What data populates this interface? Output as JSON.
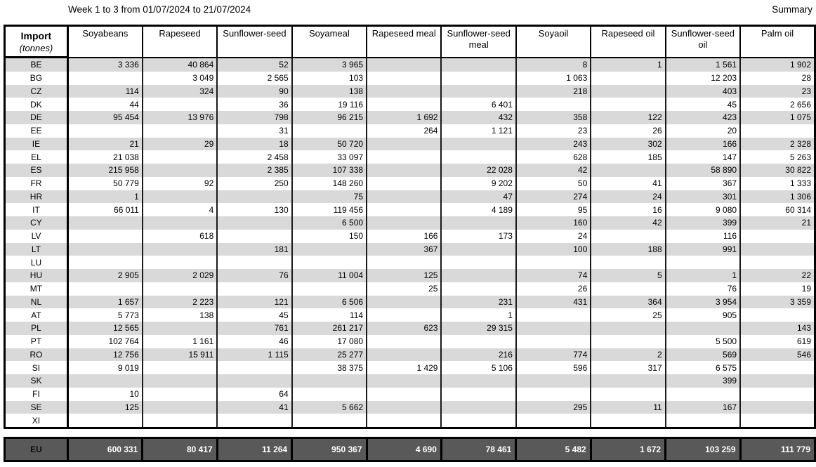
{
  "title": "Week 1 to 3 from 01/07/2024 to 21/07/2024",
  "summary_label": "Summary",
  "colors": {
    "stripe": "#d9d9d9",
    "total_row_bg": "#595959",
    "total_row_text": "#ffffff",
    "border": "#000000"
  },
  "table": {
    "corner": {
      "line1": "Import",
      "line2": "(tonnes)"
    },
    "columns": [
      "Soyabeans",
      "Rapeseed",
      "Sunflower-seed",
      "Soyameal",
      "Rapeseed meal",
      "Sunflower-seed meal",
      "Soyaoil",
      "Rapeseed oil",
      "Sunflower-seed oil",
      "Palm oil"
    ],
    "rows": [
      {
        "country": "BE",
        "values": [
          "3 336",
          "40 864",
          "52",
          "3 965",
          "",
          "",
          "8",
          "1",
          "1 561",
          "1 902"
        ]
      },
      {
        "country": "BG",
        "values": [
          "",
          "3 049",
          "2 565",
          "103",
          "",
          "",
          "1 063",
          "",
          "12 203",
          "28"
        ]
      },
      {
        "country": "CZ",
        "values": [
          "114",
          "324",
          "90",
          "138",
          "",
          "",
          "218",
          "",
          "403",
          "23"
        ]
      },
      {
        "country": "DK",
        "values": [
          "44",
          "",
          "36",
          "19 116",
          "",
          "6 401",
          "",
          "",
          "45",
          "2 656"
        ]
      },
      {
        "country": "DE",
        "values": [
          "95 454",
          "13 976",
          "798",
          "96 215",
          "1 692",
          "432",
          "358",
          "122",
          "423",
          "1 075"
        ]
      },
      {
        "country": "EE",
        "values": [
          "",
          "",
          "31",
          "",
          "264",
          "1 121",
          "23",
          "26",
          "20",
          ""
        ]
      },
      {
        "country": "IE",
        "values": [
          "21",
          "29",
          "18",
          "50 720",
          "",
          "",
          "243",
          "302",
          "166",
          "2 328"
        ]
      },
      {
        "country": "EL",
        "values": [
          "21 038",
          "",
          "2 458",
          "33 097",
          "",
          "",
          "628",
          "185",
          "147",
          "5 263"
        ]
      },
      {
        "country": "ES",
        "values": [
          "215 958",
          "",
          "2 385",
          "107 338",
          "",
          "22 028",
          "42",
          "",
          "58 890",
          "30 822"
        ]
      },
      {
        "country": "FR",
        "values": [
          "50 779",
          "92",
          "250",
          "148 260",
          "",
          "9 202",
          "50",
          "41",
          "367",
          "1 333"
        ]
      },
      {
        "country": "HR",
        "values": [
          "1",
          "",
          "",
          "75",
          "",
          "47",
          "274",
          "24",
          "301",
          "1 306"
        ]
      },
      {
        "country": "IT",
        "values": [
          "66 011",
          "4",
          "130",
          "119 456",
          "",
          "4 189",
          "95",
          "16",
          "9 080",
          "60 314"
        ]
      },
      {
        "country": "CY",
        "values": [
          "",
          "",
          "",
          "6 500",
          "",
          "",
          "160",
          "42",
          "399",
          "21"
        ]
      },
      {
        "country": "LV",
        "values": [
          "",
          "618",
          "",
          "150",
          "166",
          "173",
          "24",
          "",
          "116",
          ""
        ]
      },
      {
        "country": "LT",
        "values": [
          "",
          "",
          "181",
          "",
          "367",
          "",
          "100",
          "188",
          "991",
          ""
        ]
      },
      {
        "country": "LU",
        "values": [
          "",
          "",
          "",
          "",
          "",
          "",
          "",
          "",
          "",
          ""
        ]
      },
      {
        "country": "HU",
        "values": [
          "2 905",
          "2 029",
          "76",
          "11 004",
          "125",
          "",
          "74",
          "5",
          "1",
          "22"
        ]
      },
      {
        "country": "MT",
        "values": [
          "",
          "",
          "",
          "",
          "25",
          "",
          "26",
          "",
          "76",
          "19"
        ]
      },
      {
        "country": "NL",
        "values": [
          "1 657",
          "2 223",
          "121",
          "6 506",
          "",
          "231",
          "431",
          "364",
          "3 954",
          "3 359"
        ]
      },
      {
        "country": "AT",
        "values": [
          "5 773",
          "138",
          "45",
          "114",
          "",
          "1",
          "",
          "25",
          "905",
          ""
        ]
      },
      {
        "country": "PL",
        "values": [
          "12 565",
          "",
          "761",
          "261 217",
          "623",
          "29 315",
          "",
          "",
          "",
          "143"
        ]
      },
      {
        "country": "PT",
        "values": [
          "102 764",
          "1 161",
          "46",
          "17 080",
          "",
          "",
          "",
          "",
          "5 500",
          "619"
        ]
      },
      {
        "country": "RO",
        "values": [
          "12 756",
          "15 911",
          "1 115",
          "25 277",
          "",
          "216",
          "774",
          "2",
          "569",
          "546"
        ]
      },
      {
        "country": "SI",
        "values": [
          "9 019",
          "",
          "",
          "38 375",
          "1 429",
          "5 106",
          "596",
          "317",
          "6 575",
          ""
        ]
      },
      {
        "country": "SK",
        "values": [
          "",
          "",
          "",
          "",
          "",
          "",
          "",
          "",
          "399",
          ""
        ]
      },
      {
        "country": "FI",
        "values": [
          "10",
          "",
          "64",
          "",
          "",
          "",
          "",
          "",
          "",
          ""
        ]
      },
      {
        "country": "SE",
        "values": [
          "125",
          "",
          "41",
          "5 662",
          "",
          "",
          "295",
          "11",
          "167",
          ""
        ]
      },
      {
        "country": "XI",
        "values": [
          "",
          "",
          "",
          "",
          "",
          "",
          "",
          "",
          "",
          ""
        ]
      }
    ],
    "total": {
      "label": "EU",
      "values": [
        "600 331",
        "80 417",
        "11 264",
        "950 367",
        "4 690",
        "78 461",
        "5 482",
        "1 672",
        "103 259",
        "111 779"
      ]
    }
  }
}
